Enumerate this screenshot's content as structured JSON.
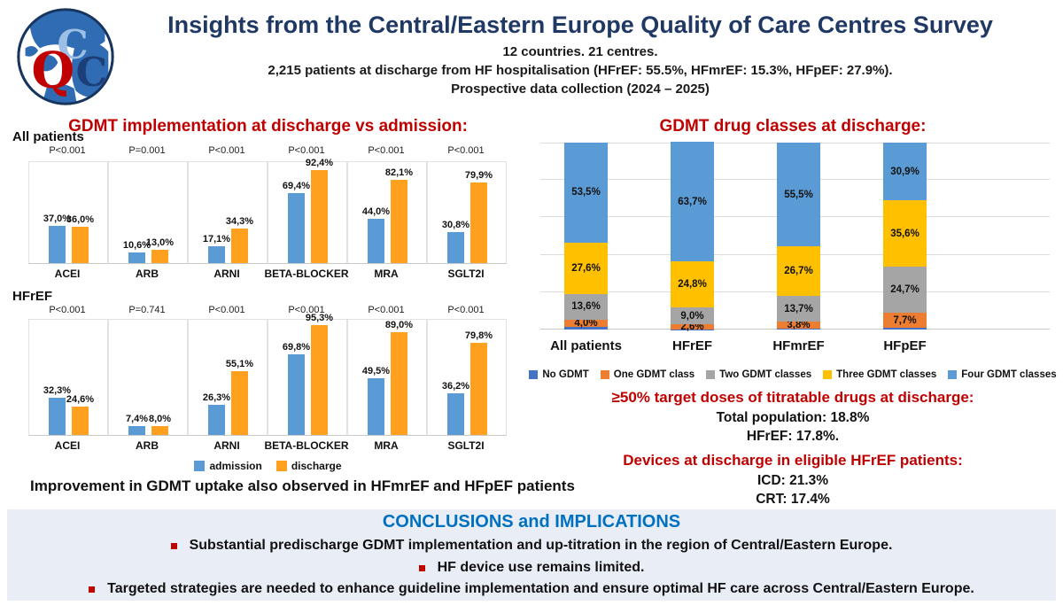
{
  "header": {
    "title": "Insights from the Central/Eastern Europe Quality of Care Centres Survey",
    "subtitle1": "12 countries. 21 centres.",
    "subtitle2": "2,215 patients at discharge from HF hospitalisation (HFrEF: 55.5%, HFmrEF: 15.3%, HFpEF: 27.9%).",
    "subtitle3": "Prospective data collection (2024 – 2025)",
    "title_color": "#1F3864",
    "logo_letters": {
      "q": "Q",
      "c1": "C",
      "c2": "C"
    },
    "logo_colors": {
      "q": "#C00000",
      "c1": "#9DBFE3",
      "c2": "#1d3f77",
      "globe": "#2F6CB3",
      "ring": "#17355F"
    }
  },
  "left_section": {
    "heading": "GDMT implementation at discharge vs admission:",
    "heading_color": "#C00000",
    "legend": [
      {
        "label": "admission",
        "color": "#5B9BD5"
      },
      {
        "label": "discharge",
        "color": "#FFA01E"
      }
    ],
    "footnote": "Improvement in GDMT uptake also observed in HFmrEF and HFpEF patients"
  },
  "right_section": {
    "heading": "GDMT drug classes at discharge:",
    "heading_color": "#C00000",
    "legend": [
      {
        "label": "No GDMT",
        "color": "#4472C4"
      },
      {
        "label": "One GDMT class",
        "color": "#ED7D31"
      },
      {
        "label": "Two GDMT classes",
        "color": "#A5A5A5"
      },
      {
        "label": "Three GDMT classes",
        "color": "#FFC000"
      },
      {
        "label": "Four GDMT classes",
        "color": "#5B9BD5"
      }
    ],
    "titration": {
      "heading": "≥50% target doses of titratable drugs at discharge:",
      "line1": "Total population: 18.8%",
      "line2": "HFrEF: 17.8%."
    },
    "devices": {
      "heading": "Devices at discharge in eligible HFrEF patients:",
      "line1": "ICD: 21.3%",
      "line2": "CRT: 17.4%"
    }
  },
  "conclusions": {
    "title": "CONCLUSIONS and IMPLICATIONS",
    "title_color": "#0070C0",
    "bullets": [
      "Substantial predischarge GDMT implementation and up-titration in the region of Central/Eastern Europe.",
      "HF device use remains limited.",
      "Targeted strategies are needed to enhance guideline implementation and ensure optimal HF care across Central/Eastern Europe."
    ]
  },
  "chart_data": [
    {
      "type": "bar",
      "title": "GDMT implementation at discharge vs admission:",
      "ylabel": "",
      "xlabel": "",
      "ylim": [
        0,
        100
      ],
      "grid": false,
      "legend_position": "bottom",
      "legend": [
        "admission",
        "discharge"
      ],
      "colors": {
        "admission": "#5B9BD5",
        "discharge": "#FFA01E"
      },
      "categories": [
        "ACEI",
        "ARB",
        "ARNI",
        "BETA-BLOCKER",
        "MRA",
        "SGLT2I"
      ],
      "panels": [
        {
          "group": "All patients",
          "p_values": [
            "P<0.001",
            "P=0.001",
            "P<0.001",
            "P<0.001",
            "P<0.001",
            "P<0.001"
          ],
          "series": [
            {
              "name": "admission",
              "values": [
                37.0,
                10.6,
                17.1,
                69.4,
                44.0,
                30.8
              ],
              "labels": [
                "37,0%",
                "10,6%",
                "17,1%",
                "69,4%",
                "44,0%",
                "30,8%"
              ]
            },
            {
              "name": "discharge",
              "values": [
                36.0,
                13.0,
                34.3,
                92.4,
                82.1,
                79.9
              ],
              "labels": [
                "36,0%",
                "13,0%",
                "34,3%",
                "92,4%",
                "82,1%",
                "79,9%"
              ]
            }
          ]
        },
        {
          "group": "HFrEF",
          "p_values": [
            "P<0.001",
            "P=0.741",
            "P<0.001",
            "P<0.001",
            "P<0.001",
            "P<0.001"
          ],
          "series": [
            {
              "name": "admission",
              "values": [
                32.3,
                7.4,
                26.3,
                69.8,
                49.5,
                36.2
              ],
              "labels": [
                "32,3%",
                "7,4%",
                "26,3%",
                "69,8%",
                "49,5%",
                "36,2%"
              ]
            },
            {
              "name": "discharge",
              "values": [
                24.6,
                8.0,
                55.1,
                95.3,
                89.0,
                79.8
              ],
              "labels": [
                "24,6%",
                "8,0%",
                "55,1%",
                "95,3%",
                "89,0%",
                "79,8%"
              ]
            }
          ]
        }
      ]
    },
    {
      "type": "bar",
      "stacked": true,
      "title": "GDMT drug classes at discharge:",
      "ylim": [
        0,
        100
      ],
      "grid": true,
      "grid_interval": 20,
      "legend_position": "bottom",
      "categories": [
        "All patients",
        "HFrEF",
        "HFmrEF",
        "HFpEF"
      ],
      "series": [
        {
          "name": "No GDMT",
          "color": "#4472C4",
          "values": [
            1.3,
            0.2,
            0.3,
            1.1
          ],
          "labels": [
            "",
            "",
            "",
            ""
          ],
          "unlabeled": true
        },
        {
          "name": "One GDMT class",
          "color": "#ED7D31",
          "values": [
            4.0,
            2.6,
            3.8,
            7.7
          ],
          "labels": [
            "4,0%",
            "2,6%",
            "3,8%",
            "7,7%"
          ]
        },
        {
          "name": "Two GDMT classes",
          "color": "#A5A5A5",
          "values": [
            13.6,
            9.0,
            13.7,
            24.7
          ],
          "labels": [
            "13,6%",
            "9,0%",
            "13,7%",
            "24,7%"
          ]
        },
        {
          "name": "Three GDMT classes",
          "color": "#FFC000",
          "values": [
            27.6,
            24.8,
            26.7,
            35.6
          ],
          "labels": [
            "27,6%",
            "24,8%",
            "26,7%",
            "35,6%"
          ]
        },
        {
          "name": "Four GDMT classes",
          "color": "#5B9BD5",
          "values": [
            53.5,
            63.7,
            55.5,
            30.9
          ],
          "labels": [
            "53,5%",
            "63,7%",
            "55,5%",
            "30,9%"
          ]
        }
      ]
    }
  ]
}
